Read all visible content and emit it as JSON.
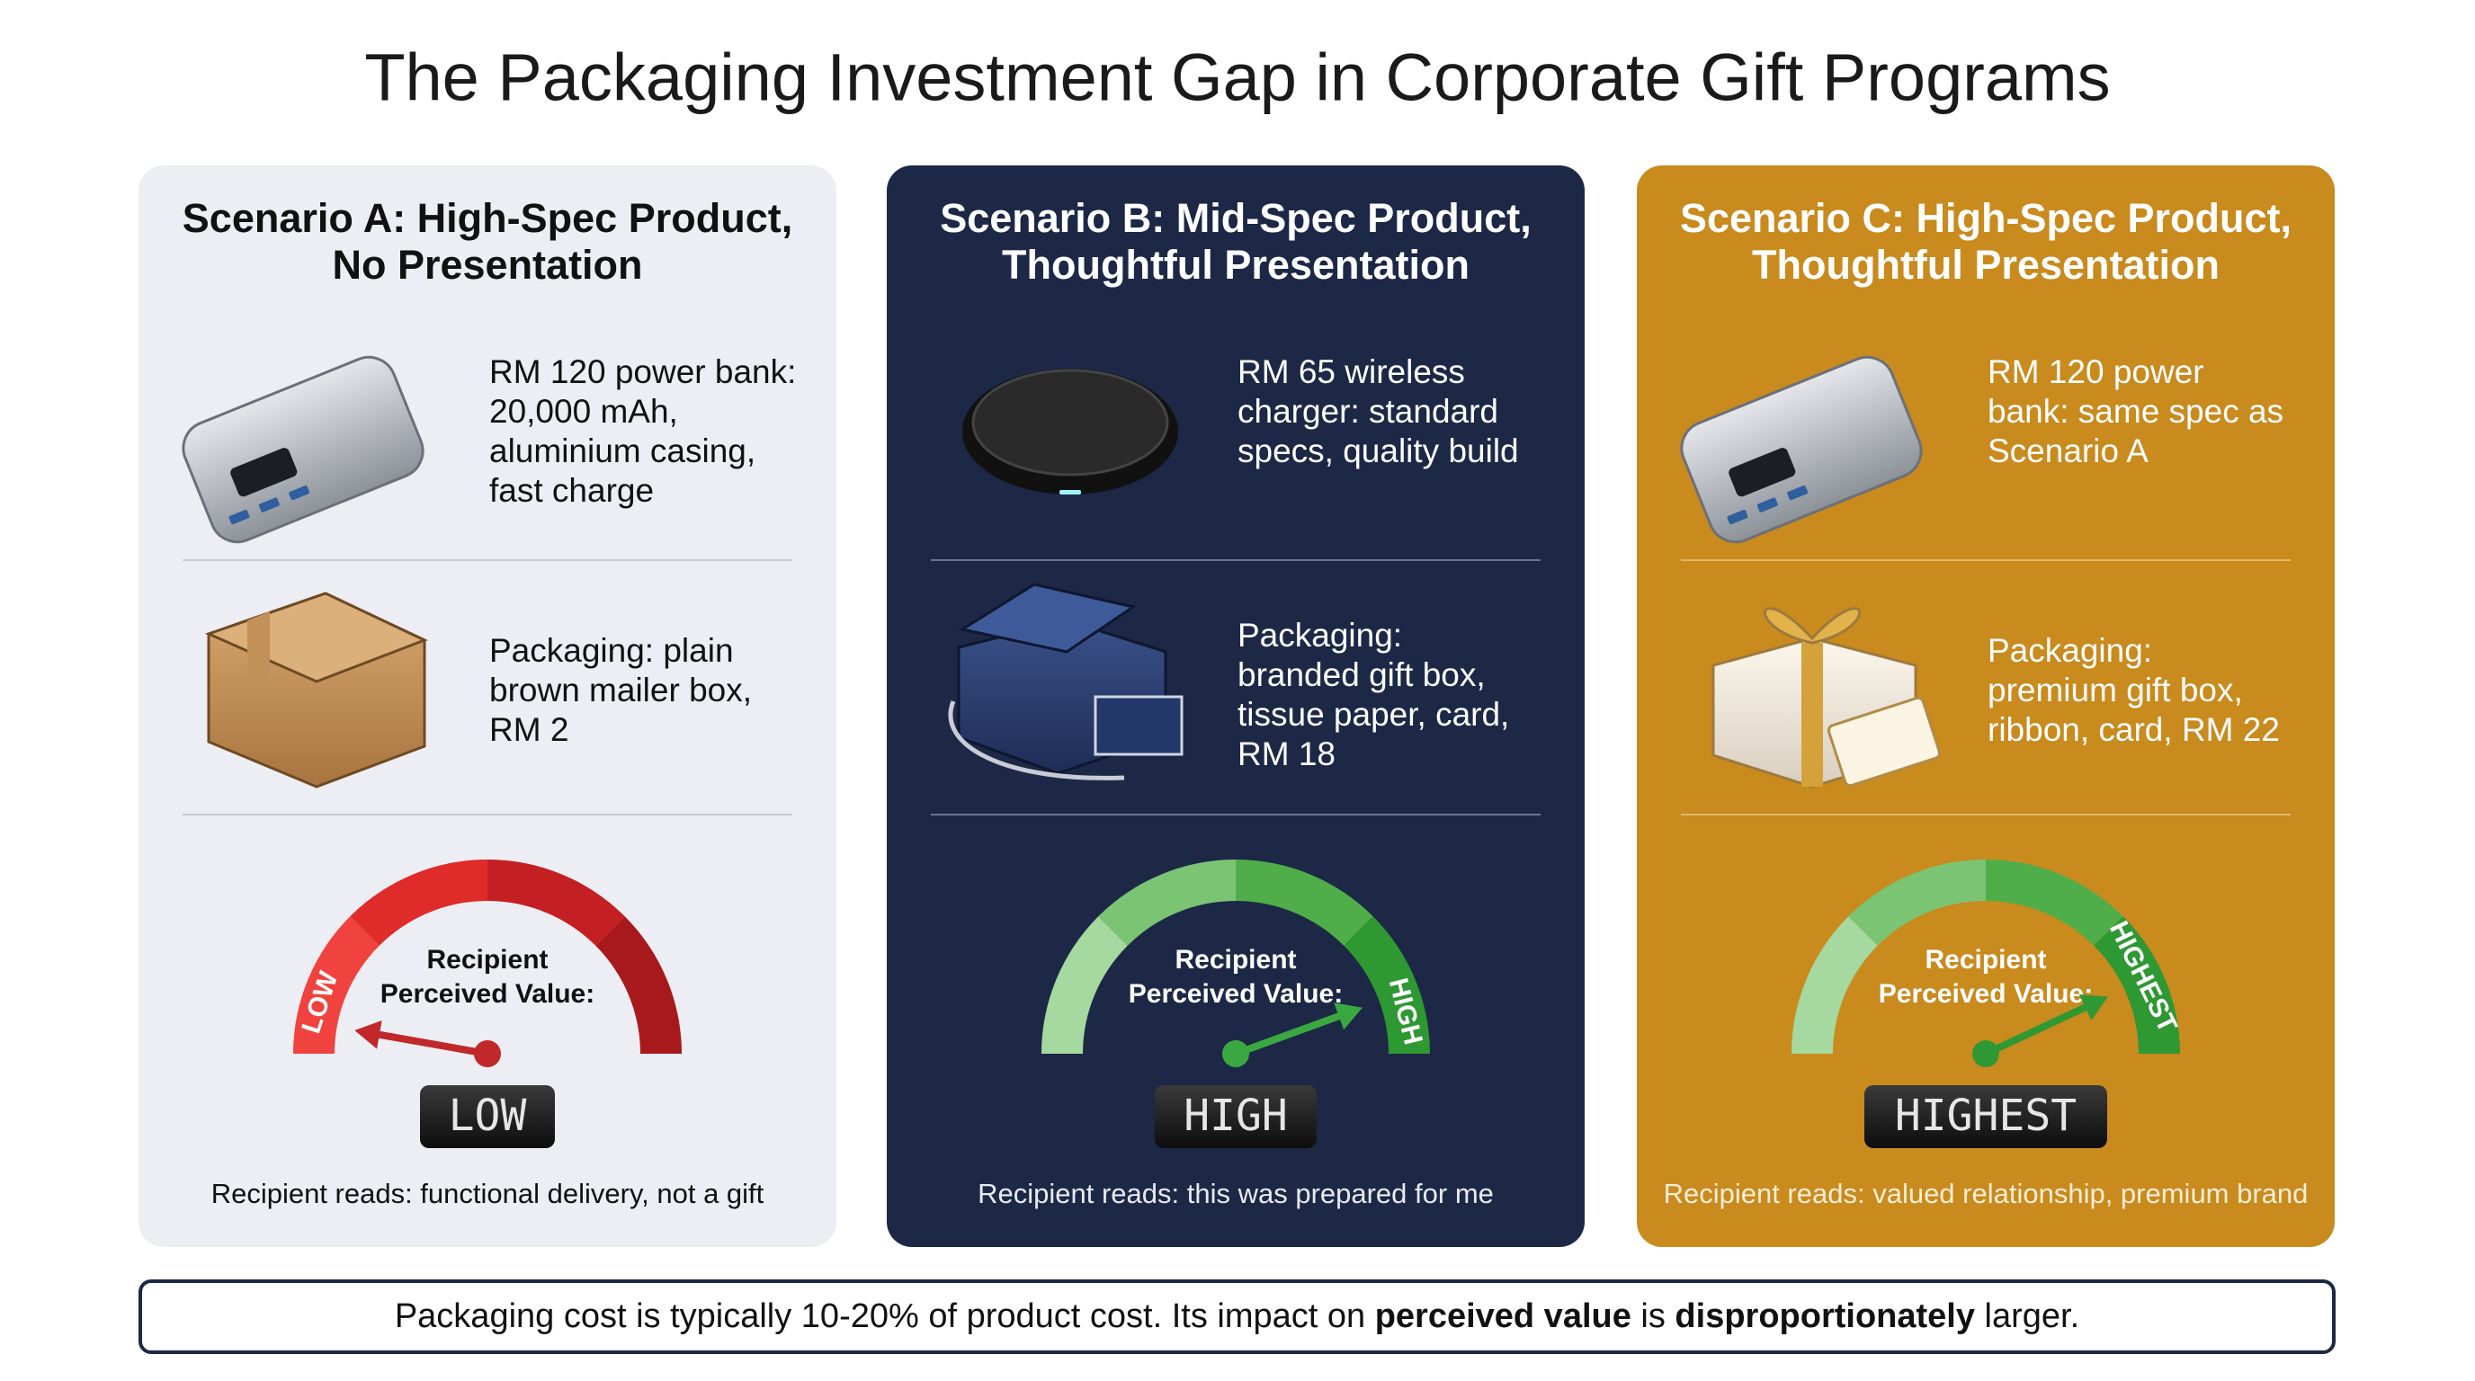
{
  "header": {
    "title": "The Packaging Investment Gap in Corporate Gift Programs"
  },
  "scenarios": [
    {
      "title": [
        "Scenario A: High-Spec Product,",
        "No Presentation"
      ],
      "product": [
        "RM 120 power bank:",
        "20,000 mAh,",
        "aluminium casing,",
        "fast charge"
      ],
      "packaging": [
        "Packaging: plain",
        "brown mailer box,",
        "RM 2"
      ],
      "gauge": {
        "label": [
          "Recipient",
          "Perceived Value:"
        ],
        "arc_label": "LOW",
        "display": "LOW"
      },
      "reads": "Recipient reads: functional delivery, not a gift"
    },
    {
      "title": [
        "Scenario B: Mid-Spec Product,",
        "Thoughtful Presentation"
      ],
      "product": [
        "RM 65 wireless",
        "charger: standard",
        "specs, quality build"
      ],
      "packaging": [
        "Packaging:",
        "branded gift box,",
        "tissue paper, card,",
        "RM 18"
      ],
      "gauge": {
        "label": [
          "Recipient",
          "Perceived Value:"
        ],
        "arc_label": "HIGH",
        "display": "HIGH"
      },
      "reads": "Recipient reads: this was prepared for me"
    },
    {
      "title": [
        "Scenario C: High-Spec Product,",
        "Thoughtful Presentation"
      ],
      "product": [
        "RM 120 power",
        "bank: same spec as",
        "Scenario A"
      ],
      "packaging": [
        "Packaging:",
        "premium gift box,",
        "ribbon, card, RM 22"
      ],
      "gauge": {
        "label": [
          "Recipient",
          "Perceived Value:"
        ],
        "arc_label": "HIGHEST",
        "display": "HIGHEST"
      },
      "reads": "Recipient reads: valued relationship, premium brand"
    }
  ],
  "footer": {
    "parts": [
      {
        "text": "Packaging cost is typically 10-20% of product cost. Its impact on ",
        "bold": false
      },
      {
        "text": "perceived value",
        "bold": true
      },
      {
        "text": " is ",
        "bold": false
      },
      {
        "text": "disproportionately",
        "bold": true
      },
      {
        "text": " larger.",
        "bold": false
      }
    ]
  }
}
